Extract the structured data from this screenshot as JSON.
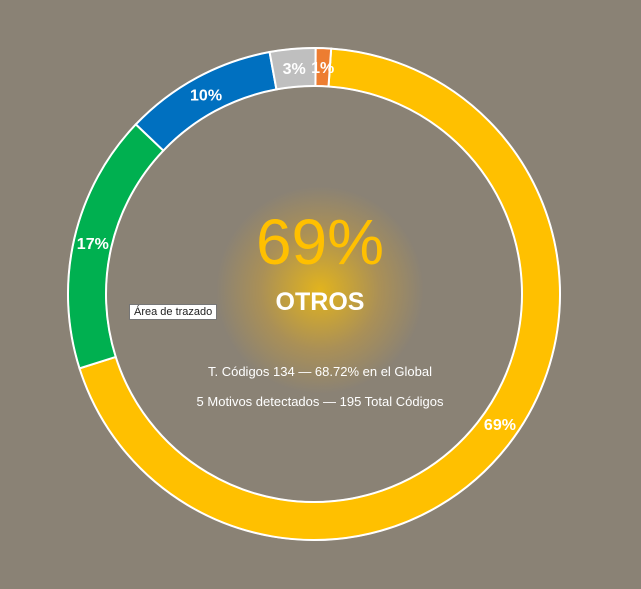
{
  "chart_data": {
    "type": "pie",
    "variant": "donut",
    "categories": [
      "OTROS",
      "",
      "",
      "",
      ""
    ],
    "values": [
      69,
      17,
      10,
      3,
      1
    ],
    "data_labels": [
      "69%",
      "17%",
      "10%",
      "3%",
      "1%"
    ],
    "colors": [
      "#ffc000",
      "#00b050",
      "#0070c0",
      "#bfbfbf",
      "#ed7d31"
    ],
    "title": "",
    "legend": "none"
  },
  "center": {
    "percent": "69%",
    "label": "OTROS",
    "line1": "T. Códigos 134 — 68.72% en el Global",
    "line2": "5 Motivos detectados — 195 Total Códigos"
  },
  "tooltip": "Área de trazado",
  "colors": {
    "background": "#8a8275",
    "accent": "#ffc000"
  }
}
